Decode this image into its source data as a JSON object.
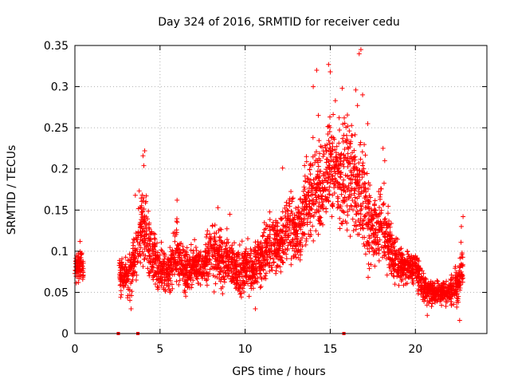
{
  "chart_data": {
    "type": "scatter",
    "title": "Day 324 of 2016, SRMTID for receiver cedu",
    "xlabel": "GPS time / hours",
    "ylabel": "SRMTID / TECUs",
    "xlim": [
      0,
      24.2
    ],
    "ylim": [
      0,
      0.35
    ],
    "xticks": [
      0,
      5,
      10,
      15,
      20
    ],
    "xtick_labels": [
      "0",
      "5",
      "10",
      "15",
      "20"
    ],
    "yticks": [
      0,
      0.05,
      0.1,
      0.15,
      0.2,
      0.25,
      0.3,
      0.35
    ],
    "ytick_labels": [
      "0",
      "0.05",
      "0.1",
      "0.15",
      "0.2",
      "0.25",
      "0.3",
      "0.35"
    ],
    "grid": true,
    "colors": {
      "series": "#ff0000",
      "grid": "#b0b0b0",
      "axis": "#000000"
    },
    "gap_markers": [
      2.55,
      3.7,
      15.8
    ],
    "envelope": [
      [
        0.0,
        0.06,
        0.1
      ],
      [
        0.5,
        0.055,
        0.11
      ],
      [
        2.6,
        0.04,
        0.1
      ],
      [
        3.2,
        0.03,
        0.1
      ],
      [
        3.6,
        0.05,
        0.16
      ],
      [
        4.0,
        0.06,
        0.21
      ],
      [
        4.5,
        0.05,
        0.14
      ],
      [
        5.0,
        0.04,
        0.12
      ],
      [
        5.5,
        0.04,
        0.11
      ],
      [
        6.0,
        0.05,
        0.15
      ],
      [
        6.5,
        0.04,
        0.11
      ],
      [
        7.0,
        0.05,
        0.12
      ],
      [
        7.5,
        0.05,
        0.11
      ],
      [
        8.0,
        0.05,
        0.15
      ],
      [
        8.5,
        0.04,
        0.14
      ],
      [
        9.0,
        0.04,
        0.13
      ],
      [
        9.5,
        0.04,
        0.12
      ],
      [
        10.0,
        0.03,
        0.12
      ],
      [
        10.5,
        0.04,
        0.12
      ],
      [
        11.0,
        0.05,
        0.14
      ],
      [
        11.5,
        0.06,
        0.16
      ],
      [
        12.0,
        0.06,
        0.16
      ],
      [
        12.5,
        0.07,
        0.19
      ],
      [
        13.0,
        0.07,
        0.17
      ],
      [
        13.5,
        0.08,
        0.22
      ],
      [
        14.0,
        0.09,
        0.27
      ],
      [
        14.5,
        0.1,
        0.25
      ],
      [
        15.0,
        0.12,
        0.3
      ],
      [
        15.5,
        0.11,
        0.27
      ],
      [
        16.0,
        0.1,
        0.29
      ],
      [
        16.5,
        0.09,
        0.26
      ],
      [
        17.0,
        0.06,
        0.25
      ],
      [
        17.5,
        0.06,
        0.18
      ],
      [
        18.0,
        0.07,
        0.21
      ],
      [
        18.5,
        0.06,
        0.15
      ],
      [
        19.0,
        0.05,
        0.12
      ],
      [
        19.5,
        0.05,
        0.11
      ],
      [
        20.0,
        0.05,
        0.11
      ],
      [
        20.5,
        0.03,
        0.08
      ],
      [
        21.0,
        0.03,
        0.07
      ],
      [
        21.5,
        0.03,
        0.07
      ],
      [
        22.0,
        0.03,
        0.07
      ],
      [
        22.5,
        0.02,
        0.1
      ],
      [
        22.8,
        0.03,
        0.14
      ]
    ],
    "notable_points": [
      [
        0.0,
        0.073
      ],
      [
        0.1,
        0.095
      ],
      [
        0.3,
        0.112
      ],
      [
        0.2,
        0.062
      ],
      [
        3.55,
        0.168
      ],
      [
        4.1,
        0.222
      ],
      [
        4.0,
        0.216
      ],
      [
        4.05,
        0.204
      ],
      [
        6.0,
        0.162
      ],
      [
        8.4,
        0.153
      ],
      [
        9.1,
        0.145
      ],
      [
        12.2,
        0.201
      ],
      [
        13.6,
        0.215
      ],
      [
        14.2,
        0.32
      ],
      [
        14.0,
        0.3
      ],
      [
        14.3,
        0.265
      ],
      [
        14.9,
        0.327
      ],
      [
        15.0,
        0.318
      ],
      [
        15.3,
        0.283
      ],
      [
        15.7,
        0.298
      ],
      [
        16.5,
        0.296
      ],
      [
        16.6,
        0.277
      ],
      [
        16.8,
        0.345
      ],
      [
        16.7,
        0.34
      ],
      [
        16.9,
        0.29
      ],
      [
        17.2,
        0.255
      ],
      [
        18.1,
        0.225
      ],
      [
        18.2,
        0.21
      ],
      [
        22.8,
        0.142
      ],
      [
        22.7,
        0.13
      ],
      [
        22.6,
        0.016
      ],
      [
        20.7,
        0.022
      ],
      [
        10.6,
        0.03
      ],
      [
        3.3,
        0.03
      ]
    ]
  }
}
